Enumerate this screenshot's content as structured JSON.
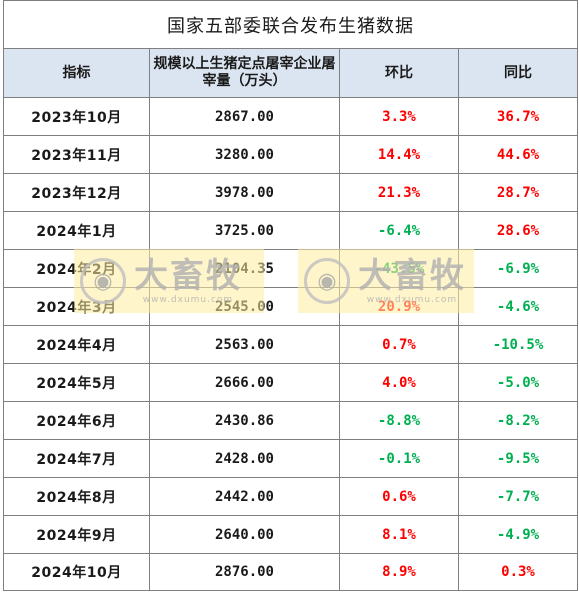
{
  "title": "国家五部委联合发布生猪数据",
  "headers": {
    "indicator": "指标",
    "inventory": "规模以上生猪定点屠宰企业屠宰量（万头）",
    "mom": "环比",
    "yoy": "同比"
  },
  "rows": [
    {
      "period": "2023年10月",
      "count": "2867.00",
      "mom": "3.3%",
      "yoy": "36.7%"
    },
    {
      "period": "2023年11月",
      "count": "3280.00",
      "mom": "14.4%",
      "yoy": "44.6%"
    },
    {
      "period": "2023年12月",
      "count": "3978.00",
      "mom": "21.3%",
      "yoy": "28.7%"
    },
    {
      "period": "2024年1月",
      "count": "3725.00",
      "mom": "-6.4%",
      "yoy": "28.6%"
    },
    {
      "period": "2024年2月",
      "count": "2104.35",
      "mom": "-43.5%",
      "yoy": "-6.9%"
    },
    {
      "period": "2024年3月",
      "count": "2545.00",
      "mom": "20.9%",
      "yoy": "-4.6%"
    },
    {
      "period": "2024年4月",
      "count": "2563.00",
      "mom": "0.7%",
      "yoy": "-10.5%"
    },
    {
      "period": "2024年5月",
      "count": "2666.00",
      "mom": "4.0%",
      "yoy": "-5.0%"
    },
    {
      "period": "2024年6月",
      "count": "2430.86",
      "mom": "-8.8%",
      "yoy": "-8.2%"
    },
    {
      "period": "2024年7月",
      "count": "2428.00",
      "mom": "-0.1%",
      "yoy": "-9.5%"
    },
    {
      "period": "2024年8月",
      "count": "2442.00",
      "mom": "0.6%",
      "yoy": "-7.7%"
    },
    {
      "period": "2024年9月",
      "count": "2640.00",
      "mom": "8.1%",
      "yoy": "-4.9%"
    },
    {
      "period": "2024年10月",
      "count": "2876.00",
      "mom": "8.9%",
      "yoy": "0.3%"
    }
  ],
  "watermark": {
    "name": "大畜牧",
    "url": "www.dxumu.com",
    "icon": "pig-logo-icon"
  },
  "colors": {
    "increase": "#ff0000",
    "decrease": "#00b050",
    "header_bg": "#dbe5f1",
    "watermark_bg": "#ffeca0"
  }
}
